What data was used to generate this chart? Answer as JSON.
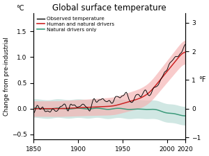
{
  "title": "Global surface temperature",
  "ylabel_left": "Change from pre-industrial",
  "ylabel_right": "°F",
  "xlabel_left": "°C",
  "xlim": [
    1850,
    2020
  ],
  "ylim_c": [
    -0.6,
    1.85
  ],
  "ylim_f": [
    -1.08,
    3.33
  ],
  "yticks_c": [
    -0.5,
    0.0,
    0.5,
    1.0,
    1.5
  ],
  "yticks_f": [
    -1.0,
    0.0,
    1.0,
    2.0,
    3.0
  ],
  "xticks": [
    1850,
    1900,
    1950,
    2000,
    2020
  ],
  "observed_color": "#000000",
  "human_color": "#cc2222",
  "natural_color": "#3a9a7a",
  "human_fill_color": "#f5b0b0",
  "natural_fill_color": "#aad4cc",
  "legend_labels": [
    "Observed temperature",
    "Human and natural drivers",
    "Natural drivers only"
  ],
  "background_color": "#ffffff",
  "figsize": [
    3.0,
    2.25
  ],
  "dpi": 100
}
